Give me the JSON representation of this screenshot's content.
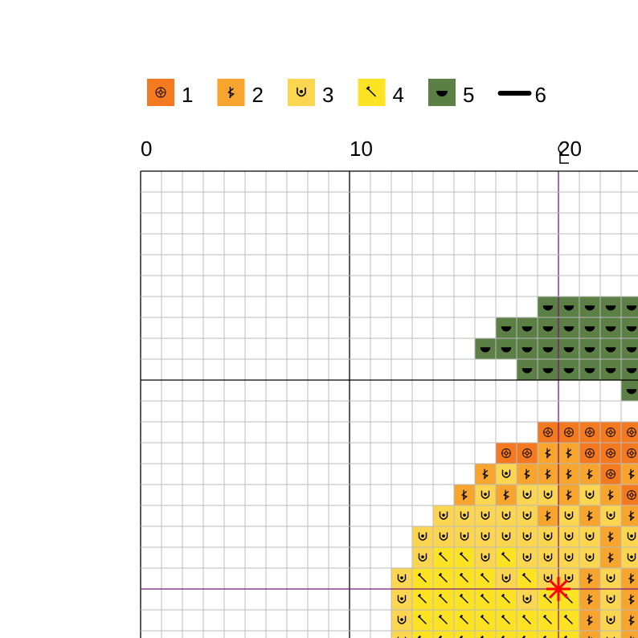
{
  "legend": [
    {
      "code": "1",
      "label": "1",
      "color": "#f47a22"
    },
    {
      "code": "2",
      "label": "2",
      "color": "#f7a52e"
    },
    {
      "code": "3",
      "label": "3",
      "color": "#fdd651"
    },
    {
      "code": "4",
      "label": "4",
      "color": "#fde324"
    },
    {
      "code": "5",
      "label": "5",
      "color": "#5b7f45"
    },
    {
      "code": "6",
      "label": "6",
      "color": "#000000"
    }
  ],
  "column_labels": [
    "0",
    "10",
    "20"
  ],
  "pattern": {
    "rows": [
      "........................",
      "........................",
      "........................",
      "........................",
      "........................",
      "........................",
      "...................55555",
      ".................5555555",
      "................55555555",
      "..................555555",
      ".......................5",
      "........................",
      "...................11111",
      ".................1122111",
      "................23222212",
      "...............232332321",
      "..............3333323232",
      ".............33333333323",
      ".............34434333323",
      "............344443433232",
      "............344444344232",
      "............344444444232",
      "............344444444232"
    ]
  }
}
